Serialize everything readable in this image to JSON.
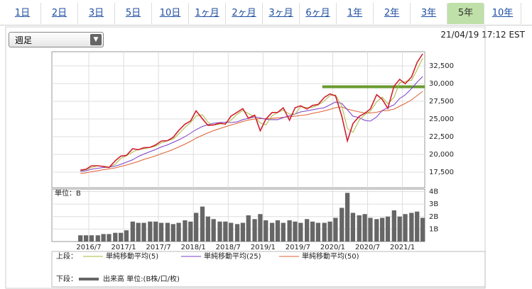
{
  "tabs": [
    "1日",
    "2日",
    "3日",
    "5日",
    "10日",
    "1ヶ月",
    "2ヶ月",
    "3ヶ月",
    "6ヶ月",
    "1年",
    "2年",
    "3年",
    "5年",
    "10年"
  ],
  "selected_tab": 12,
  "dropdown": "週足",
  "timestamp": "21/04/19 17:12 EST",
  "chart_data": [
    {
      "type": "line",
      "legend_label": "上段：",
      "x": [
        2016.38,
        2016.46,
        2016.54,
        2016.63,
        2016.71,
        2016.79,
        2016.88,
        2016.96,
        2017.04,
        2017.13,
        2017.21,
        2017.29,
        2017.38,
        2017.46,
        2017.54,
        2017.63,
        2017.71,
        2017.79,
        2017.88,
        2017.96,
        2018.04,
        2018.13,
        2018.21,
        2018.29,
        2018.38,
        2018.46,
        2018.54,
        2018.63,
        2018.71,
        2018.79,
        2018.88,
        2018.96,
        2019.04,
        2019.13,
        2019.21,
        2019.29,
        2019.38,
        2019.46,
        2019.54,
        2019.63,
        2019.71,
        2019.79,
        2019.88,
        2019.96,
        2020.04,
        2020.13,
        2020.21,
        2020.29,
        2020.38,
        2020.46,
        2020.54,
        2020.63,
        2020.71,
        2020.79,
        2020.88,
        2020.96,
        2021.04,
        2021.13,
        2021.21,
        2021.29
      ],
      "series": [
        {
          "color": "#d02030",
          "values": [
            17800,
            17900,
            18400,
            18400,
            18300,
            18150,
            19100,
            19760,
            19860,
            20810,
            20660,
            20940,
            21000,
            21350,
            21890,
            21950,
            22400,
            23380,
            24270,
            24720,
            26150,
            25030,
            24100,
            24160,
            24420,
            24270,
            25400,
            25960,
            26460,
            25110,
            25540,
            23330,
            24990,
            25920,
            25930,
            26590,
            24820,
            26600,
            26860,
            26400,
            26920,
            27050,
            28050,
            28540,
            28260,
            25400,
            21900,
            24350,
            25380,
            25810,
            26430,
            28430,
            27780,
            26500,
            29640,
            30600,
            29980,
            30930,
            32980,
            34200
          ]
        },
        {
          "name": "単純移動平均(5)",
          "color": "#a8b83a",
          "values": [
            17700,
            17850,
            18150,
            18400,
            18350,
            18220,
            18620,
            19430,
            19810,
            20330,
            20730,
            20800,
            20970,
            21170,
            21620,
            21920,
            22170,
            22890,
            23820,
            24500,
            25430,
            25590,
            24560,
            24130,
            24290,
            24340,
            24830,
            25680,
            26210,
            25780,
            25320,
            24430,
            24160,
            25450,
            25920,
            26260,
            25700,
            25710,
            26730,
            26630,
            26660,
            26980,
            27550,
            28300,
            28400,
            26830,
            23650,
            23120,
            24860,
            25600,
            26120,
            27430,
            28100,
            27140,
            28070,
            30120,
            30290,
            30450,
            31950,
            33590
          ]
        },
        {
          "name": "単純移動平均(25)",
          "color": "#7a3fc8",
          "values": [
            17600,
            17700,
            17900,
            18050,
            18150,
            18200,
            18350,
            18600,
            18900,
            19250,
            19700,
            20050,
            20400,
            20700,
            21050,
            21350,
            21700,
            22050,
            22500,
            23000,
            23500,
            23950,
            24200,
            24400,
            24500,
            24550,
            24500,
            24600,
            24900,
            25100,
            25300,
            25150,
            24950,
            24900,
            24900,
            25200,
            25450,
            25700,
            26000,
            26150,
            26300,
            26450,
            26600,
            27000,
            27400,
            27200,
            26300,
            25400,
            25200,
            24800,
            24700,
            25300,
            26200,
            26600,
            27000,
            27900,
            28400,
            29300,
            30200,
            31000
          ]
        },
        {
          "name": "単純移動平均(50)",
          "color": "#e06030",
          "values": [
            17300,
            17400,
            17550,
            17700,
            17850,
            17950,
            18100,
            18300,
            18500,
            18750,
            19000,
            19300,
            19550,
            19800,
            20100,
            20400,
            20700,
            21050,
            21450,
            21850,
            22300,
            22700,
            23050,
            23350,
            23650,
            23900,
            24150,
            24400,
            24650,
            24850,
            25000,
            25050,
            25050,
            25100,
            25150,
            25250,
            25300,
            25400,
            25500,
            25600,
            25800,
            25950,
            26150,
            26350,
            26600,
            26700,
            26400,
            26200,
            26000,
            25850,
            25850,
            25950,
            26150,
            26200,
            26400,
            26800,
            27200,
            27700,
            28300,
            28900
          ]
        }
      ],
      "hline": {
        "value": 29550,
        "x": [
          2019.85,
          2021.32
        ],
        "color": "#6a9a30"
      },
      "xlim": [
        2015.97,
        2021.32
      ],
      "ylim": [
        15300,
        34500
      ],
      "yticks": [
        {
          "value": 17500,
          "label": "17,500"
        },
        {
          "value": 20000,
          "label": "20,000"
        },
        {
          "value": 22500,
          "label": "22,500"
        },
        {
          "value": 25000,
          "label": "25,000"
        },
        {
          "value": 27500,
          "label": "27,500"
        },
        {
          "value": 30000,
          "label": "30,000"
        },
        {
          "value": 32500,
          "label": "32,500"
        }
      ],
      "grid": true
    },
    {
      "type": "bar",
      "legend_label": "下段：",
      "unit_label": "単位：B",
      "x": [
        2016.38,
        2016.46,
        2016.54,
        2016.63,
        2016.71,
        2016.79,
        2016.88,
        2016.96,
        2017.04,
        2017.13,
        2017.21,
        2017.29,
        2017.38,
        2017.46,
        2017.54,
        2017.63,
        2017.71,
        2017.79,
        2017.88,
        2017.96,
        2018.04,
        2018.13,
        2018.21,
        2018.29,
        2018.38,
        2018.46,
        2018.54,
        2018.63,
        2018.71,
        2018.79,
        2018.88,
        2018.96,
        2019.04,
        2019.13,
        2019.21,
        2019.29,
        2019.38,
        2019.46,
        2019.54,
        2019.63,
        2019.71,
        2019.79,
        2019.88,
        2019.96,
        2020.04,
        2020.13,
        2020.21,
        2020.29,
        2020.38,
        2020.46,
        2020.54,
        2020.63,
        2020.71,
        2020.79,
        2020.88,
        2020.96,
        2021.04,
        2021.13,
        2021.21,
        2021.29
      ],
      "series": [
        {
          "name": "出来高 単位:(B株/口/枚)",
          "color": "#666666",
          "values": [
            0.5,
            0.5,
            0.5,
            0.5,
            0.6,
            0.6,
            0.7,
            0.7,
            0.9,
            1.6,
            1.5,
            1.5,
            1.6,
            1.6,
            1.5,
            1.5,
            1.4,
            1.5,
            1.7,
            1.6,
            2.3,
            2.8,
            2.0,
            1.8,
            1.6,
            1.6,
            1.5,
            1.4,
            1.5,
            2.1,
            1.8,
            2.2,
            1.7,
            1.5,
            1.7,
            1.5,
            1.7,
            1.6,
            1.5,
            1.8,
            1.6,
            1.5,
            1.5,
            1.6,
            1.9,
            2.7,
            3.9,
            2.3,
            2.1,
            2.2,
            1.9,
            1.8,
            1.9,
            2.0,
            2.5,
            2.0,
            2.2,
            2.3,
            2.4,
            1.9
          ]
        }
      ],
      "xlim": [
        2015.97,
        2021.32
      ],
      "ylim": [
        0,
        4.2
      ],
      "yticks": [
        {
          "value": 1,
          "label": "1B"
        },
        {
          "value": 2,
          "label": "2B"
        },
        {
          "value": 3,
          "label": "3B"
        },
        {
          "value": 4,
          "label": "4B"
        }
      ],
      "xticks": [
        {
          "value": 2016.5,
          "label": "2016/7"
        },
        {
          "value": 2017.0,
          "label": "2017/1"
        },
        {
          "value": 2017.5,
          "label": "2017/7"
        },
        {
          "value": 2018.0,
          "label": "2018/1"
        },
        {
          "value": 2018.5,
          "label": "2018/7"
        },
        {
          "value": 2019.0,
          "label": "2019/1"
        },
        {
          "value": 2019.5,
          "label": "2019/7"
        },
        {
          "value": 2020.0,
          "label": "2020/1"
        },
        {
          "value": 2020.5,
          "label": "2020/7"
        },
        {
          "value": 2021.0,
          "label": "2021/1"
        }
      ],
      "grid": true
    }
  ]
}
